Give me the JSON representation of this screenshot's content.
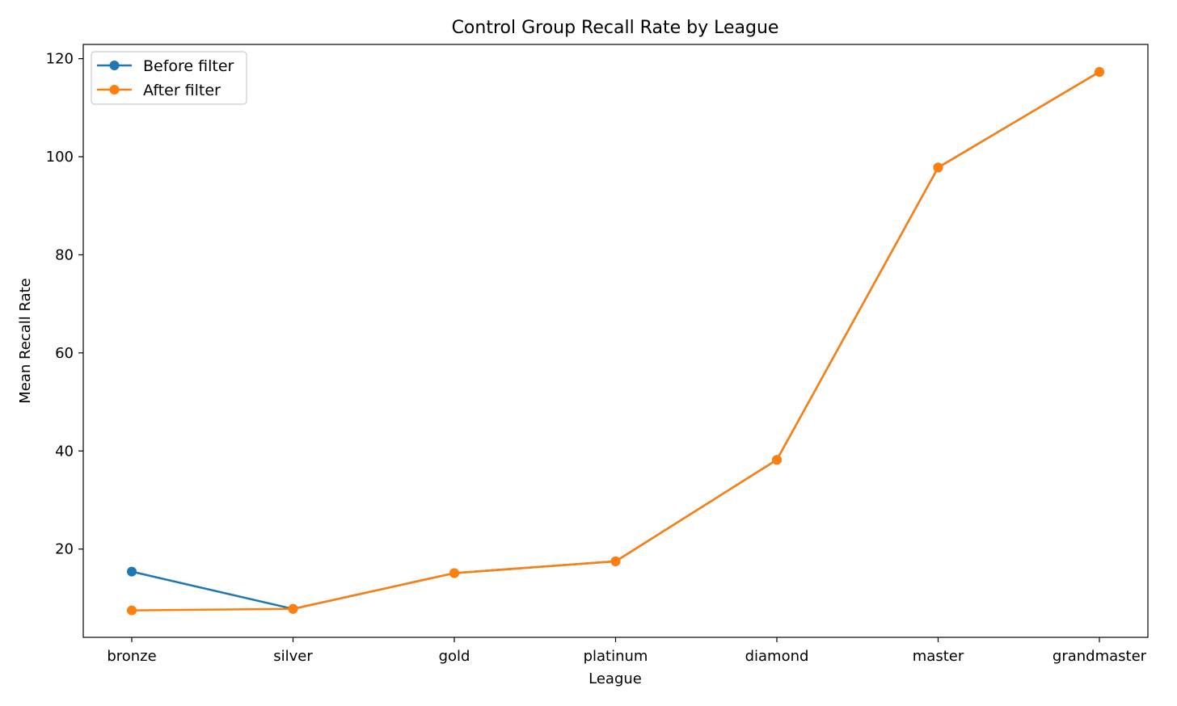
{
  "chart_data": {
    "type": "line",
    "title": "Control Group Recall Rate by League",
    "xlabel": "League",
    "ylabel": "Mean Recall Rate",
    "categories": [
      "bronze",
      "silver",
      "gold",
      "platinum",
      "diamond",
      "master",
      "grandmaster"
    ],
    "series": [
      {
        "name": "Before filter",
        "color": "#1f77b4",
        "values": [
          15.4,
          7.8,
          15.1,
          17.5,
          38.2,
          97.8,
          117.3
        ]
      },
      {
        "name": "After filter",
        "color": "#ff7f0e",
        "values": [
          7.5,
          7.8,
          15.1,
          17.5,
          38.2,
          97.8,
          117.3
        ]
      }
    ],
    "yticks": [
      20,
      40,
      60,
      80,
      100,
      120
    ],
    "ylim": [
      2.0,
      122.9
    ],
    "grid": false,
    "legend_position": "top-left",
    "marker": "circle"
  }
}
